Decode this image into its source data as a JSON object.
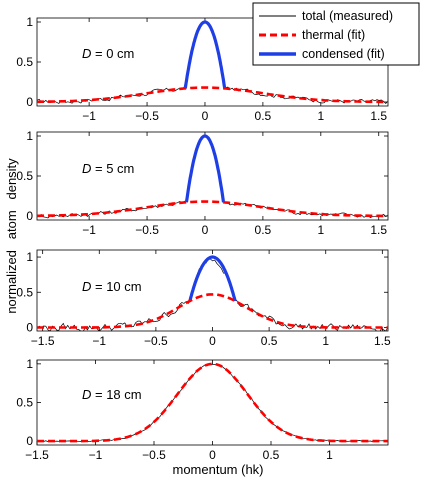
{
  "chart_data": {
    "type": "line",
    "xlabel": "momentum (hk)",
    "ylabel": "normalized   atom   density",
    "legend": {
      "placement": "top-right",
      "entries": [
        {
          "label": "total (measured)",
          "color": "#000000",
          "style": "thin-solid"
        },
        {
          "label": "thermal (fit)",
          "color": "#ff0000",
          "style": "dashed"
        },
        {
          "label": "condensed (fit)",
          "color": "#1f3fe6",
          "style": "thick-solid"
        }
      ]
    },
    "colors": {
      "measured": "#000000",
      "thermal": "#ff0000",
      "condensed": "#1f3fe6"
    },
    "panels": [
      {
        "label_var": "D",
        "label_rest": " = 0 cm",
        "xlim": [
          -1.45,
          1.58
        ],
        "ylim": [
          -0.05,
          1.05
        ],
        "xticks": [
          -1,
          -0.5,
          0,
          0.5,
          1,
          1.5
        ],
        "xtick_labels": [
          "−1",
          "−0.5",
          "0",
          "0.5",
          "1",
          "1.5"
        ],
        "yticks": [
          0,
          0.5,
          1
        ],
        "ytick_labels": [
          "0",
          "0.5",
          "1"
        ],
        "thermal": {
          "amplitude": 0.18,
          "sigma": 0.5
        },
        "condensed": {
          "amplitude": 0.82,
          "center": 0.0,
          "width": 0.17
        },
        "measured_noise": 0.025
      },
      {
        "label_var": "D",
        "label_rest": " = 5 cm",
        "xlim": [
          -1.45,
          1.58
        ],
        "ylim": [
          -0.05,
          1.05
        ],
        "xticks": [
          -1,
          -0.5,
          0,
          0.5,
          1,
          1.5
        ],
        "xtick_labels": [
          "−1",
          "−0.5",
          "0",
          "0.5",
          "1",
          "1.5"
        ],
        "yticks": [
          0,
          0.5,
          1
        ],
        "ytick_labels": [
          "0",
          "0.5",
          "1"
        ],
        "thermal": {
          "amplitude": 0.18,
          "sigma": 0.5
        },
        "condensed": {
          "amplitude": 0.82,
          "center": 0.0,
          "width": 0.16
        },
        "measured_noise": 0.025
      },
      {
        "label_var": "D",
        "label_rest": " = 10 cm",
        "xlim": [
          -1.55,
          1.55
        ],
        "ylim": [
          -0.05,
          1.1
        ],
        "xticks": [
          -1.5,
          -1,
          -0.5,
          0,
          0.5,
          1,
          1.5
        ],
        "xtick_labels": [
          "−1.5",
          "−1",
          "−0.5",
          "0",
          "0.5",
          "1",
          "1.5"
        ],
        "yticks": [
          0,
          0.5,
          1
        ],
        "ytick_labels": [
          "0",
          "0.5",
          "1"
        ],
        "thermal": {
          "amplitude": 0.47,
          "sigma": 0.3
        },
        "condensed": {
          "amplitude": 0.53,
          "center": 0.0,
          "width": 0.2
        },
        "measured_noise": 0.05
      },
      {
        "label_var": "D",
        "label_rest": " = 18 cm",
        "xlim": [
          -1.5,
          1.5
        ],
        "ylim": [
          -0.05,
          1.05
        ],
        "xticks": [
          -1.5,
          -1,
          -0.5,
          0,
          0.5,
          1
        ],
        "xtick_labels": [
          "−1.5",
          "−1",
          "−0.5",
          "0",
          "0.5",
          "1"
        ],
        "yticks": [
          0,
          0.5,
          1
        ],
        "ytick_labels": [
          "0",
          "0.5",
          "1"
        ],
        "thermal": {
          "amplitude": 1.0,
          "sigma": 0.3
        },
        "condensed": null,
        "measured_noise": 0.008
      }
    ]
  }
}
